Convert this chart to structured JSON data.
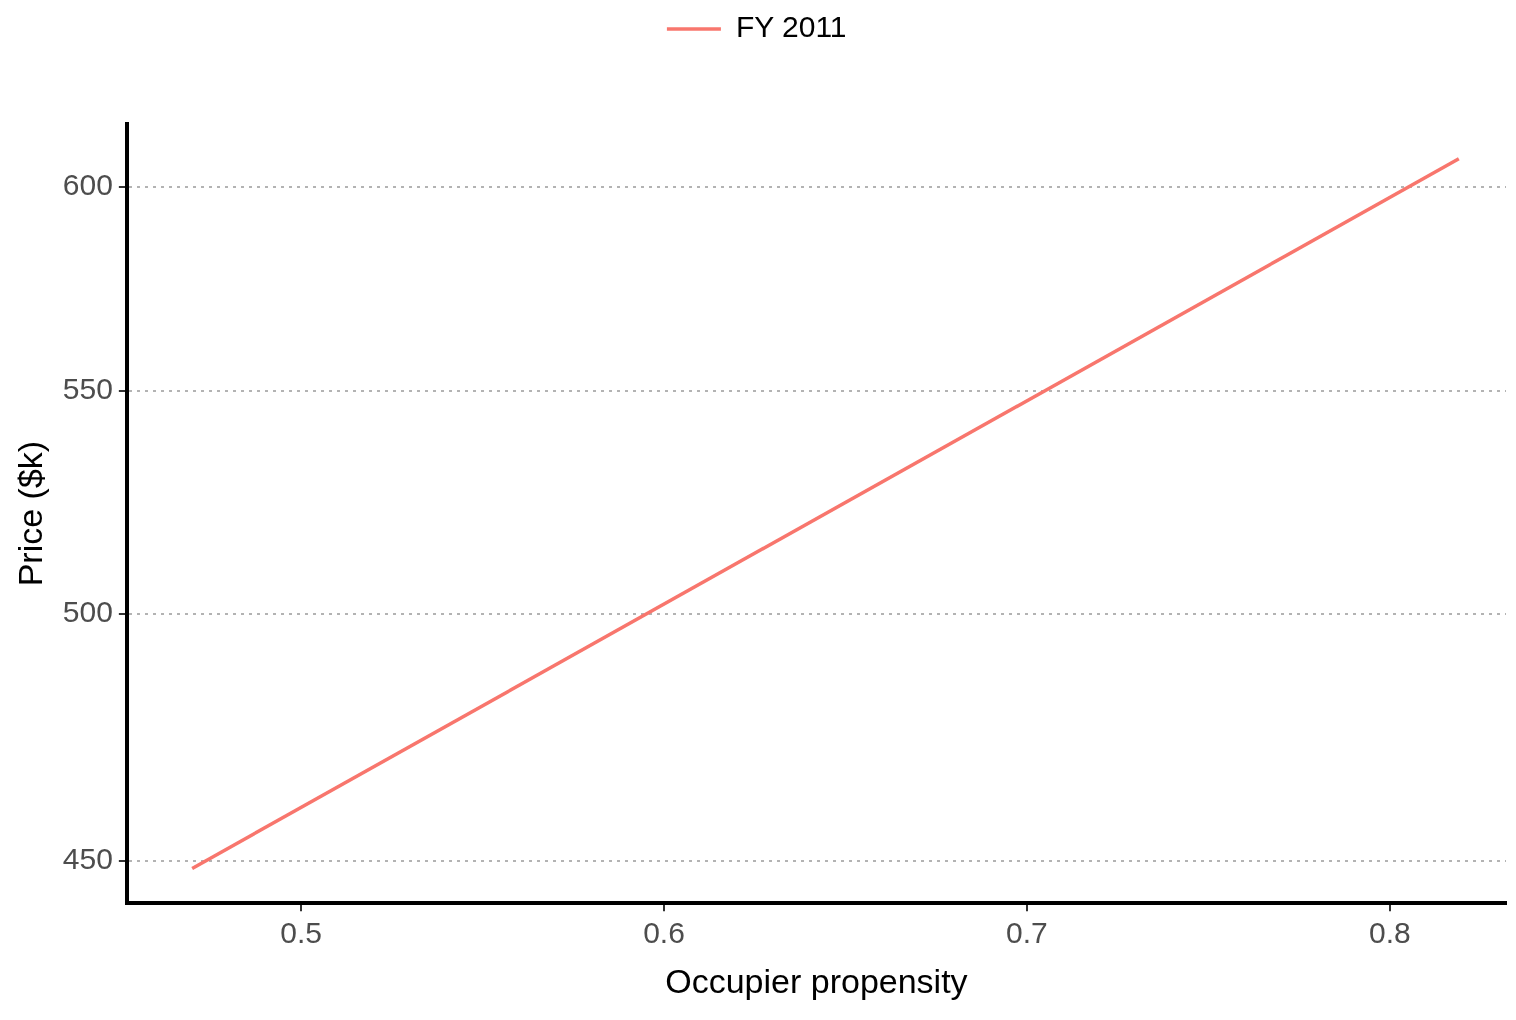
{
  "chart_data": {
    "type": "line",
    "xlabel": "Occupier propensity",
    "ylabel": "Price ($k)",
    "series": [
      {
        "name": "FY 2011",
        "color": "#f8766d",
        "x": [
          0.47,
          0.819
        ],
        "values": [
          448.5,
          607.3
        ]
      }
    ],
    "xlim": [
      0.452,
      0.832
    ],
    "xticks": [
      0.5,
      0.6,
      0.7,
      0.8
    ],
    "ylim": [
      441.9,
      616.4
    ],
    "yticks": [
      450,
      500,
      550,
      600
    ],
    "log": "y",
    "grid": "y",
    "legend": "top",
    "marker": "none",
    "line_style": "solid"
  }
}
